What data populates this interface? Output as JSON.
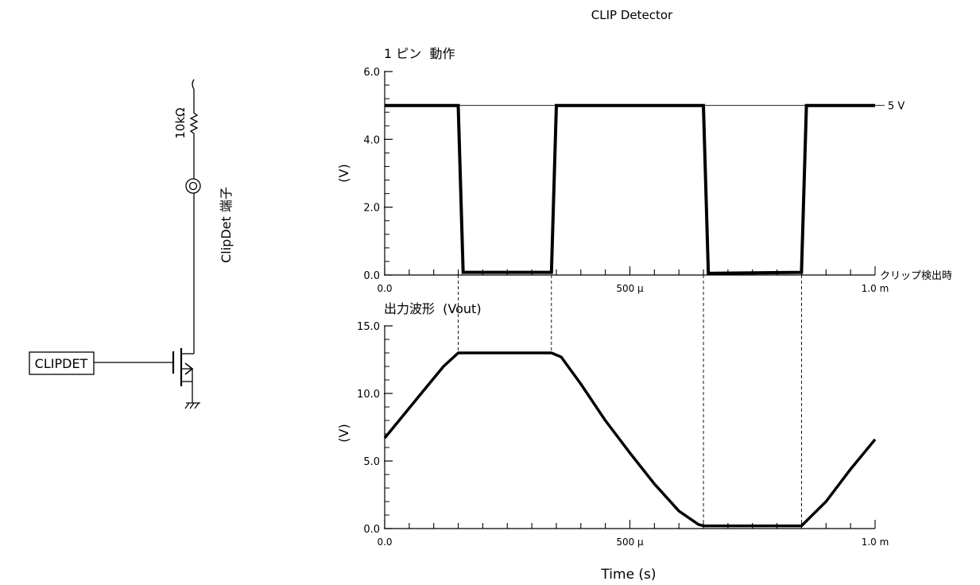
{
  "figure": {
    "title": "CLIP Detector",
    "xlabel": "Time (s)"
  },
  "schematic": {
    "resistor_label": "10kΩ",
    "pin_label": "ClipDet 端子",
    "input_label": "CLIPDET"
  },
  "chart_data": [
    {
      "type": "line",
      "title": "1 ピン  動作",
      "ylabel": "(V)",
      "xlim": [
        0,
        0.001
      ],
      "ylim": [
        0,
        6
      ],
      "yticks": [
        0,
        2,
        4,
        6
      ],
      "ytick_labels": [
        "0.0",
        "2.0",
        "4.0",
        "6.0"
      ],
      "xticks": [
        0,
        0.0005,
        0.001
      ],
      "xtick_labels": [
        "0.0",
        "500 µ",
        "1.0 m"
      ],
      "reference_lines": [
        {
          "y": 5,
          "label": "5 V"
        }
      ],
      "annotations": [
        {
          "y": 0,
          "label": "クリップ検出時"
        }
      ],
      "series": [
        {
          "x": [
            0,
            0.00015,
            0.00016,
            0.00034,
            0.00035,
            0.00065,
            0.00066,
            0.00085,
            0.00086,
            0.001
          ],
          "y": [
            5.0,
            5.0,
            0.08,
            0.08,
            5.0,
            5.0,
            0.05,
            0.08,
            5.0,
            5.0
          ]
        }
      ]
    },
    {
      "type": "line",
      "title": "出力波形  (Vout)",
      "ylabel": "(V)",
      "xlim": [
        0,
        0.001
      ],
      "ylim": [
        0,
        15
      ],
      "yticks": [
        0,
        5,
        10,
        15
      ],
      "ytick_labels": [
        "0.0",
        "5.0",
        "10.0",
        "15.0"
      ],
      "xticks": [
        0,
        0.0005,
        0.001
      ],
      "xtick_labels": [
        "0.0",
        "500 µ",
        "1.0 m"
      ],
      "markers_x": [
        0.00015,
        0.00034,
        0.00065,
        0.00085
      ],
      "series": [
        {
          "x": [
            0,
            7e-05,
            0.00012,
            0.00015,
            0.00034,
            0.00036,
            0.0004,
            0.00045,
            0.0005,
            0.00055,
            0.0006,
            0.00064,
            0.00065,
            0.00085,
            0.0009,
            0.00095,
            0.001
          ],
          "y": [
            6.7,
            9.8,
            12.0,
            13.0,
            13.0,
            12.7,
            10.7,
            8.0,
            5.6,
            3.3,
            1.3,
            0.3,
            0.2,
            0.2,
            2.0,
            4.4,
            6.6
          ]
        }
      ]
    }
  ]
}
